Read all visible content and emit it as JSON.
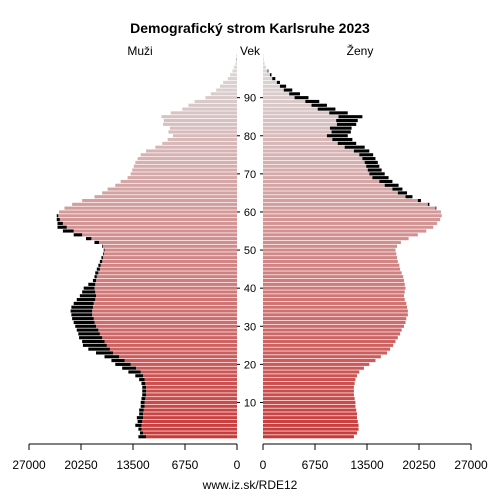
{
  "chart_data": {
    "type": "bar",
    "title": "Demografický strom Karlsruhe 2023",
    "left_label": "Muži",
    "center_label": "Vek",
    "right_label": "Ženy",
    "footer": "www.iz.sk/RDE12",
    "x_ticks_left": [
      "27000",
      "20250",
      "13500",
      "6750",
      "0"
    ],
    "x_ticks_right": [
      "0",
      "6750",
      "13500",
      "20250",
      "27000"
    ],
    "x_tick_values": [
      27000,
      20250,
      13500,
      6750,
      0
    ],
    "xlim": [
      0,
      27000
    ],
    "age_ticks": [
      "10",
      "20",
      "30",
      "40",
      "50",
      "60",
      "70",
      "80",
      "90"
    ],
    "age_range": [
      0,
      100
    ],
    "colors": {
      "young": "#c83a3a",
      "old": "#dcdcdc",
      "excess": "#000000",
      "axis": "#000000"
    },
    "series": [
      {
        "name": "Muži",
        "values": [
          12800,
          12600,
          12800,
          13200,
          12900,
          13000,
          12700,
          12700,
          12500,
          12500,
          12400,
          12300,
          12300,
          12300,
          12400,
          12700,
          13200,
          14100,
          14900,
          15800,
          16300,
          17200,
          18300,
          19300,
          20000,
          20100,
          20500,
          20600,
          20800,
          21000,
          21200,
          21400,
          21500,
          21600,
          21500,
          21200,
          20800,
          20400,
          20100,
          19900,
          19300,
          18700,
          18500,
          18400,
          18200,
          18000,
          17800,
          17600,
          17400,
          17300,
          17500,
          18500,
          19600,
          21200,
          22600,
          23300,
          23300,
          23400,
          23400,
          23100,
          22400,
          21400,
          20100,
          18500,
          17500,
          16800,
          15800,
          15100,
          14200,
          13800,
          13600,
          13400,
          13200,
          12900,
          12500,
          11800,
          10600,
          9700,
          9000,
          8300,
          8900,
          8700,
          9600,
          9500,
          9800,
          8600,
          7100,
          6300,
          5500,
          4100,
          3400,
          2700,
          2200,
          1800,
          1200,
          900,
          600,
          400,
          200,
          120,
          60
        ]
      },
      {
        "name": "Ženy",
        "values": [
          11800,
          12200,
          12400,
          12400,
          12300,
          12200,
          12200,
          12100,
          12000,
          12000,
          11900,
          11800,
          11800,
          11800,
          11900,
          12000,
          12200,
          12500,
          13100,
          13800,
          14600,
          15300,
          16100,
          16500,
          16900,
          17200,
          17500,
          17800,
          18000,
          18300,
          18500,
          18600,
          18800,
          18800,
          18700,
          18600,
          18400,
          18300,
          18400,
          18500,
          18400,
          18300,
          18200,
          18000,
          17800,
          17700,
          17500,
          17400,
          17300,
          17200,
          17400,
          17900,
          18900,
          20100,
          21200,
          22100,
          22600,
          23000,
          23200,
          23100,
          22500,
          21600,
          20500,
          19400,
          18700,
          18100,
          17600,
          16800,
          16300,
          15800,
          15400,
          15100,
          14900,
          14600,
          14300,
          13800,
          13200,
          12100,
          11600,
          11000,
          11400,
          11500,
          12100,
          12300,
          12900,
          11000,
          9400,
          8300,
          7300,
          5900,
          4800,
          3800,
          3000,
          2200,
          1600,
          1100,
          700,
          400,
          200,
          100,
          50
        ]
      }
    ]
  }
}
